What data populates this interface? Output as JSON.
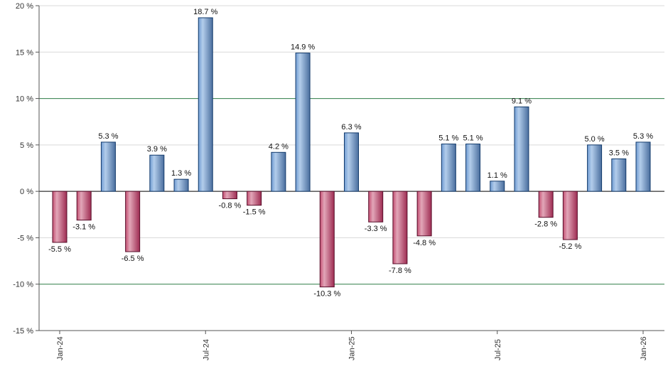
{
  "chart_data": {
    "type": "bar",
    "title": "",
    "xlabel": "",
    "ylabel": "",
    "ylim": [
      -15,
      20
    ],
    "ytick_step": 5,
    "grid": true,
    "legend": "none",
    "y_tick_labels": [
      "20 %",
      "15 %",
      "10 %",
      "5 %",
      "0 %",
      "-5 %",
      "-10 %",
      "-15 %"
    ],
    "y_tick_values": [
      20,
      15,
      10,
      5,
      0,
      -5,
      -10,
      -15
    ],
    "accent_gridline_values": [
      10,
      -10
    ],
    "x_ticks": [
      {
        "label": "Jan-24",
        "index": 0
      },
      {
        "label": "Jul-24",
        "index": 6
      },
      {
        "label": "Jan-25",
        "index": 12
      },
      {
        "label": "Jul-25",
        "index": 18
      },
      {
        "label": "Jan-26",
        "index": 24
      }
    ],
    "categories": [
      "Jan-24",
      "Feb-24",
      "Mar-24",
      "Apr-24",
      "May-24",
      "Jun-24",
      "Jul-24",
      "Aug-24",
      "Sep-24",
      "Oct-24",
      "Nov-24",
      "Dec-24",
      "Jan-25",
      "Feb-25",
      "Mar-25",
      "Apr-25",
      "May-25",
      "Jun-25",
      "Jul-25",
      "Aug-25",
      "Sep-25",
      "Oct-25",
      "Nov-25",
      "Dec-25",
      "Jan-26"
    ],
    "values": [
      -5.5,
      -3.1,
      5.3,
      -6.5,
      3.9,
      1.3,
      18.7,
      -0.8,
      -1.5,
      4.2,
      14.9,
      -10.3,
      6.3,
      -3.3,
      -7.8,
      -4.8,
      5.1,
      5.1,
      1.1,
      9.1,
      -2.8,
      -5.2,
      5.0,
      3.5,
      5.3
    ],
    "value_labels": [
      "-5.5 %",
      "-3.1 %",
      "5.3 %",
      "-6.5 %",
      "3.9 %",
      "1.3 %",
      "18.7 %",
      "-0.8 %",
      "-1.5 %",
      "4.2 %",
      "14.9 %",
      "-10.3 %",
      "6.3 %",
      "-3.3 %",
      "-7.8 %",
      "-4.8 %",
      "5.1 %",
      "5.1 %",
      "1.1 %",
      "9.1 %",
      "-2.8 %",
      "-5.2 %",
      "5.0 %",
      "3.5 %",
      "5.3 %"
    ],
    "colors": {
      "positive_fill": "#6f9bd2",
      "positive_light": "#b3cdeb",
      "positive_dark": "#4a6e9e",
      "positive_border": "#123a6b",
      "negative_fill": "#c34e71",
      "negative_light": "#e2a6b8",
      "negative_dark": "#9e2c52",
      "negative_border": "#570e2a",
      "gridline": "#d9d9d9",
      "zero_line": "#000000",
      "accent_line": "#2e7d46",
      "axis": "#555555",
      "text": "#333333",
      "value_label_text": "#111111",
      "background": "#ffffff"
    }
  }
}
